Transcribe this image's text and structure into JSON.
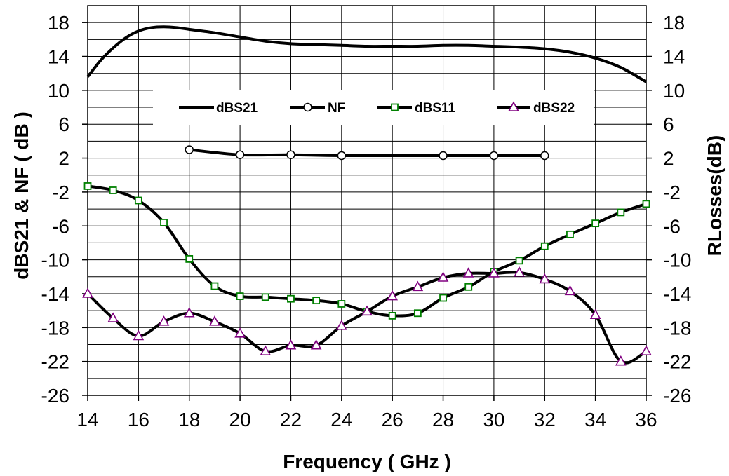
{
  "chart_data": {
    "type": "line",
    "title": "",
    "xlabel": "Frequency ( GHz )",
    "ylabel_left": "dBS21 & NF ( dB )",
    "ylabel_right": "RLosses(dB)",
    "xlim": [
      14,
      36
    ],
    "ylim": [
      -26,
      20
    ],
    "x_ticks": [
      14,
      16,
      18,
      20,
      22,
      24,
      26,
      28,
      30,
      32,
      34,
      36
    ],
    "y_ticks": [
      -26,
      -22,
      -18,
      -14,
      -10,
      -6,
      -2,
      2,
      6,
      10,
      14,
      18
    ],
    "grid": true,
    "legend_position": "top-center",
    "series": [
      {
        "name": "dBS21",
        "marker": "none",
        "color": "#000000",
        "x": [
          14,
          14.5,
          15,
          15.5,
          16,
          16.5,
          17,
          17.5,
          18,
          19,
          20,
          21,
          22,
          23,
          24,
          25,
          26,
          27,
          28,
          29,
          30,
          31,
          32,
          33,
          34,
          35,
          36
        ],
        "y": [
          11.6,
          13.5,
          15.0,
          16.2,
          17.0,
          17.4,
          17.5,
          17.4,
          17.2,
          16.8,
          16.3,
          15.8,
          15.5,
          15.4,
          15.3,
          15.2,
          15.2,
          15.2,
          15.3,
          15.3,
          15.2,
          15.1,
          14.9,
          14.5,
          13.8,
          12.7,
          11.0
        ]
      },
      {
        "name": "NF",
        "marker": "circle",
        "color": "#000000",
        "x": [
          18,
          20,
          22,
          24,
          28,
          30,
          32
        ],
        "y": [
          3.0,
          2.4,
          2.4,
          2.3,
          2.3,
          2.3,
          2.3
        ]
      },
      {
        "name": "dBS11",
        "marker": "square",
        "color": "#008000",
        "x": [
          14,
          15,
          16,
          17,
          18,
          19,
          20,
          21,
          22,
          23,
          24,
          25,
          26,
          27,
          28,
          29,
          30,
          31,
          32,
          33,
          34,
          35,
          36
        ],
        "y": [
          -1.3,
          -1.8,
          -3.0,
          -5.6,
          -9.9,
          -13.1,
          -14.3,
          -14.4,
          -14.6,
          -14.8,
          -15.2,
          -16.1,
          -16.6,
          -16.3,
          -14.5,
          -13.2,
          -11.4,
          -10.1,
          -8.4,
          -7.0,
          -5.7,
          -4.4,
          -3.4
        ]
      },
      {
        "name": "dBS22",
        "marker": "triangle",
        "color": "#800080",
        "x": [
          14,
          15,
          16,
          17,
          18,
          19,
          20,
          21,
          22,
          23,
          24,
          25,
          26,
          27,
          28,
          29,
          30,
          31,
          32,
          33,
          34,
          35,
          36
        ],
        "y": [
          -14.0,
          -16.9,
          -19.0,
          -17.3,
          -16.3,
          -17.3,
          -18.7,
          -20.8,
          -20.1,
          -20.1,
          -17.8,
          -16.1,
          -14.3,
          -13.2,
          -12.1,
          -11.6,
          -11.6,
          -11.5,
          -12.3,
          -13.7,
          -16.5,
          -22.0,
          -20.8
        ]
      }
    ]
  }
}
